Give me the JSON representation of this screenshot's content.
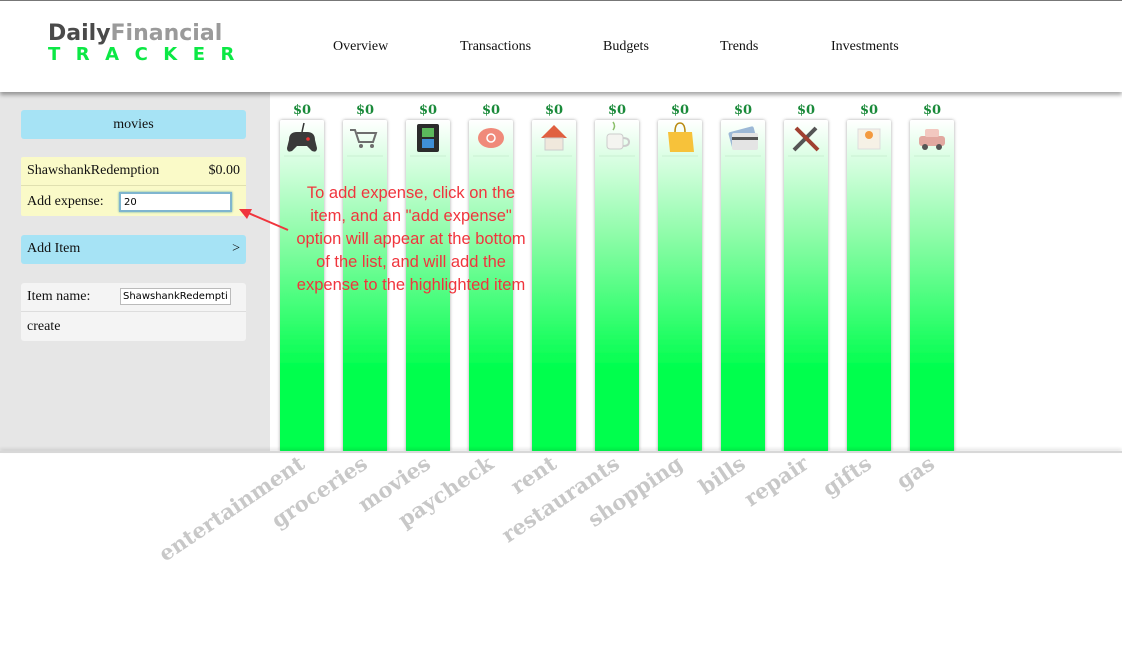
{
  "logo": {
    "line1_a": "Daily",
    "line1_b": "Financial",
    "line2": "TRACKER"
  },
  "nav": [
    {
      "label": "Overview"
    },
    {
      "label": "Transactions"
    },
    {
      "label": "Budgets"
    },
    {
      "label": "Trends"
    },
    {
      "label": "Investments"
    }
  ],
  "panel": {
    "category_title": "movies",
    "item": {
      "name": "ShawshankRedemption",
      "amount": "$0.00"
    },
    "add_expense": {
      "label": "Add expense:",
      "value": "20"
    },
    "add_item": {
      "label": "Add Item",
      "arrow": ">"
    },
    "form": {
      "name_label": "Item name:",
      "name_value": "ShawshankRedemption",
      "create_label": "create"
    }
  },
  "annotation": "To add expense, click on the item, and an \"add expense\" option will appear at the bottom of the list, and will add the expense to the highlighted item",
  "colors": {
    "bar_green": "#00ff4e",
    "accent_blue": "#a6e3f5",
    "annotation_red": "#f0353d"
  },
  "chart_data": {
    "type": "bar",
    "categories": [
      "entertainment",
      "groceries",
      "movies",
      "paycheck",
      "rent",
      "restaurants",
      "shopping",
      "bills",
      "repair",
      "gifts",
      "gas"
    ],
    "amount_labels": [
      "$0",
      "$0",
      "$0",
      "$0",
      "$0",
      "$0",
      "$0",
      "$0",
      "$0",
      "$0",
      "$0"
    ],
    "values": [
      0,
      0,
      0,
      0,
      0,
      0,
      0,
      0,
      0,
      0,
      0
    ],
    "icons": [
      "gamepad-icon",
      "cart-icon",
      "film-icon",
      "piggy-bank-icon",
      "house-icon",
      "coffee-cup-icon",
      "shopping-bag-icon",
      "credit-card-icon",
      "tools-icon",
      "gift-icon",
      "car-icon"
    ],
    "title": "",
    "xlabel": "",
    "ylabel": ""
  }
}
